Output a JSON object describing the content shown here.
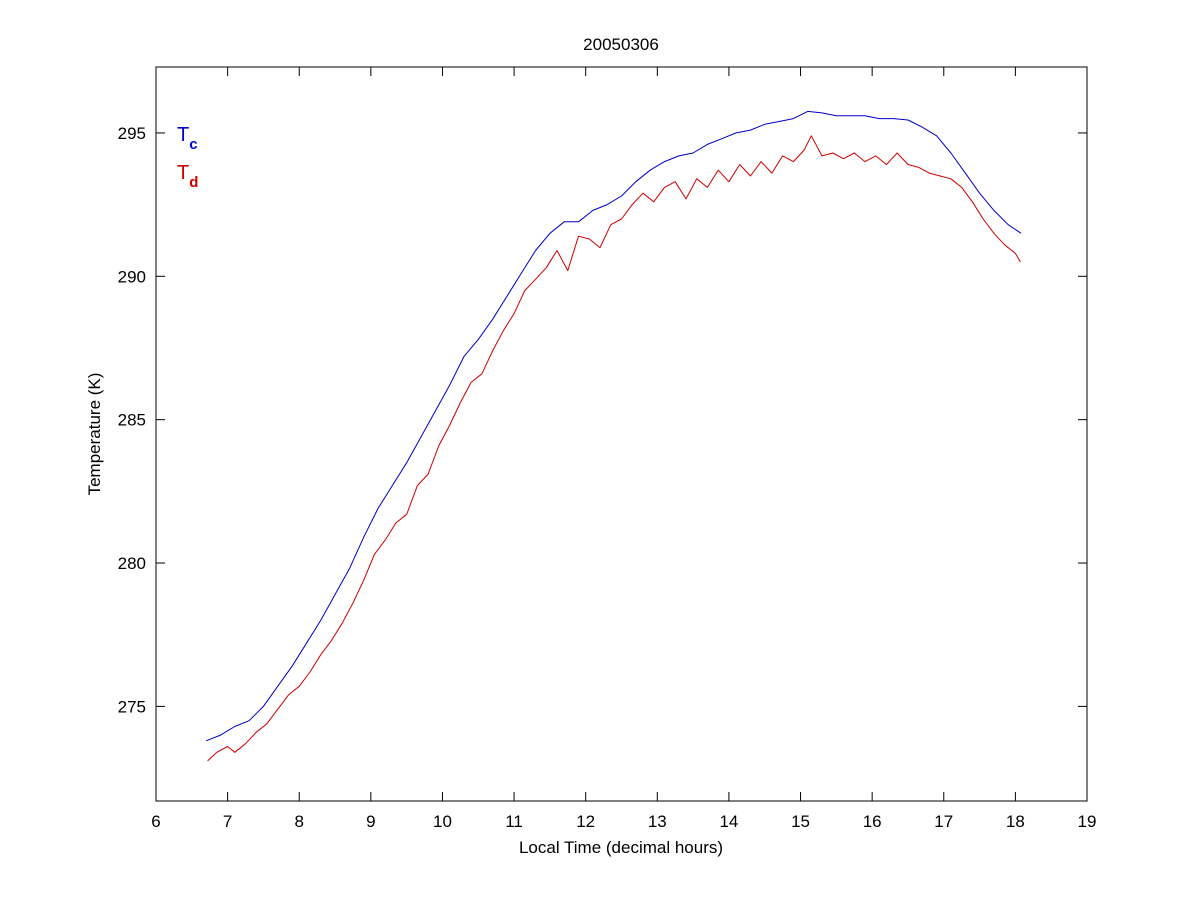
{
  "chart_data": {
    "type": "line",
    "title": "20050306",
    "xlabel": "Local Time (decimal hours)",
    "ylabel": "Temperature (K)",
    "xlim": [
      6,
      19
    ],
    "ylim": [
      271.7,
      297.3
    ],
    "xticks": [
      6,
      7,
      8,
      9,
      10,
      11,
      12,
      13,
      14,
      15,
      16,
      17,
      18,
      19
    ],
    "yticks": [
      275,
      280,
      285,
      290,
      295
    ],
    "grid": false,
    "legend_position": "top-left",
    "series": [
      {
        "name_main": "T",
        "name_sub": "c",
        "color": "#0000c8",
        "x": [
          6.7,
          6.9,
          7.1,
          7.3,
          7.5,
          7.7,
          7.9,
          8.1,
          8.3,
          8.5,
          8.7,
          8.9,
          9.1,
          9.3,
          9.5,
          9.7,
          9.9,
          10.1,
          10.3,
          10.5,
          10.7,
          10.9,
          11.1,
          11.3,
          11.5,
          11.7,
          11.9,
          12.1,
          12.3,
          12.5,
          12.7,
          12.9,
          13.1,
          13.3,
          13.5,
          13.7,
          13.9,
          14.1,
          14.3,
          14.5,
          14.7,
          14.9,
          15.1,
          15.3,
          15.5,
          15.7,
          15.9,
          16.1,
          16.3,
          16.5,
          16.7,
          16.9,
          17.1,
          17.3,
          17.5,
          17.7,
          17.9,
          18.08
        ],
        "y": [
          273.8,
          274.0,
          274.3,
          274.5,
          275.0,
          275.7,
          276.4,
          277.2,
          278.0,
          278.9,
          279.8,
          280.9,
          281.9,
          282.7,
          283.5,
          284.4,
          285.3,
          286.2,
          287.2,
          287.8,
          288.5,
          289.3,
          290.1,
          290.9,
          291.5,
          291.9,
          291.9,
          292.3,
          292.5,
          292.8,
          293.3,
          293.7,
          294.0,
          294.2,
          294.3,
          294.6,
          294.8,
          295.0,
          295.1,
          295.3,
          295.4,
          295.5,
          295.75,
          295.7,
          295.6,
          295.6,
          295.6,
          295.5,
          295.5,
          295.45,
          295.2,
          294.9,
          294.3,
          293.6,
          292.9,
          292.3,
          291.8,
          291.5
        ]
      },
      {
        "name_main": "T",
        "name_sub": "d",
        "color": "#cc0000",
        "x": [
          6.72,
          6.85,
          7.0,
          7.1,
          7.25,
          7.4,
          7.55,
          7.7,
          7.85,
          8.0,
          8.15,
          8.3,
          8.45,
          8.6,
          8.75,
          8.9,
          9.05,
          9.2,
          9.35,
          9.5,
          9.65,
          9.8,
          9.95,
          10.1,
          10.25,
          10.4,
          10.55,
          10.7,
          10.85,
          11.0,
          11.15,
          11.3,
          11.45,
          11.6,
          11.75,
          11.9,
          12.05,
          12.2,
          12.35,
          12.5,
          12.65,
          12.8,
          12.95,
          13.1,
          13.25,
          13.4,
          13.55,
          13.7,
          13.85,
          14.0,
          14.15,
          14.3,
          14.45,
          14.6,
          14.75,
          14.9,
          15.05,
          15.15,
          15.3,
          15.45,
          15.6,
          15.75,
          15.9,
          16.05,
          16.2,
          16.35,
          16.5,
          16.65,
          16.8,
          16.95,
          17.1,
          17.25,
          17.4,
          17.55,
          17.7,
          17.85,
          18.0,
          18.07
        ],
        "y": [
          273.1,
          273.4,
          273.6,
          273.4,
          273.7,
          274.1,
          274.4,
          274.9,
          275.4,
          275.7,
          276.2,
          276.8,
          277.3,
          277.9,
          278.6,
          279.4,
          280.3,
          280.8,
          281.4,
          281.7,
          282.7,
          283.1,
          284.1,
          284.8,
          285.6,
          286.3,
          286.6,
          287.4,
          288.1,
          288.7,
          289.5,
          289.9,
          290.3,
          290.9,
          290.2,
          291.4,
          291.3,
          291.0,
          291.8,
          292.0,
          292.5,
          292.9,
          292.6,
          293.1,
          293.3,
          292.7,
          293.4,
          293.1,
          293.7,
          293.3,
          293.9,
          293.5,
          294.0,
          293.6,
          294.2,
          294.0,
          294.4,
          294.9,
          294.2,
          294.3,
          294.1,
          294.3,
          294.0,
          294.2,
          293.9,
          294.3,
          293.9,
          293.8,
          293.6,
          293.5,
          293.4,
          293.1,
          292.6,
          292.0,
          291.5,
          291.1,
          290.8,
          290.5
        ]
      }
    ]
  }
}
